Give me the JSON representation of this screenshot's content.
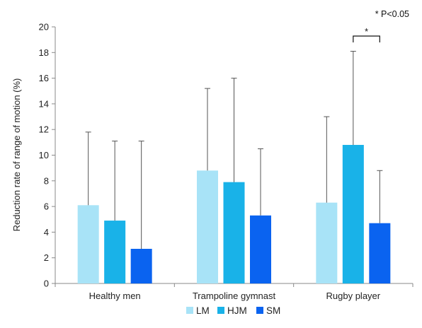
{
  "chart_data": {
    "type": "bar",
    "title": "",
    "xlabel": "",
    "ylabel": "Reduction rate of range of motion (%)",
    "ylim": [
      0,
      20
    ],
    "yticks": [
      0,
      2,
      4,
      6,
      8,
      10,
      12,
      14,
      16,
      18,
      20
    ],
    "categories": [
      "Healthy men",
      "Trampoline gymnast",
      "Rugby player"
    ],
    "series": [
      {
        "name": "LM",
        "color": "#a8e3f7",
        "values": [
          6.1,
          8.8,
          6.3
        ],
        "error_upper": [
          11.8,
          15.2,
          13.0
        ]
      },
      {
        "name": "HJM",
        "color": "#19b2e8",
        "values": [
          4.9,
          7.9,
          10.8
        ],
        "error_upper": [
          11.1,
          16.0,
          18.1
        ]
      },
      {
        "name": "SM",
        "color": "#0a63f0",
        "values": [
          2.7,
          5.3,
          4.7
        ],
        "error_upper": [
          11.1,
          10.5,
          8.8
        ]
      }
    ],
    "grid": false,
    "legend_position": "bottom",
    "significance": {
      "category": "Rugby player",
      "between": [
        "HJM",
        "SM"
      ],
      "marker": "*"
    },
    "annotation": "* P<0.05"
  }
}
